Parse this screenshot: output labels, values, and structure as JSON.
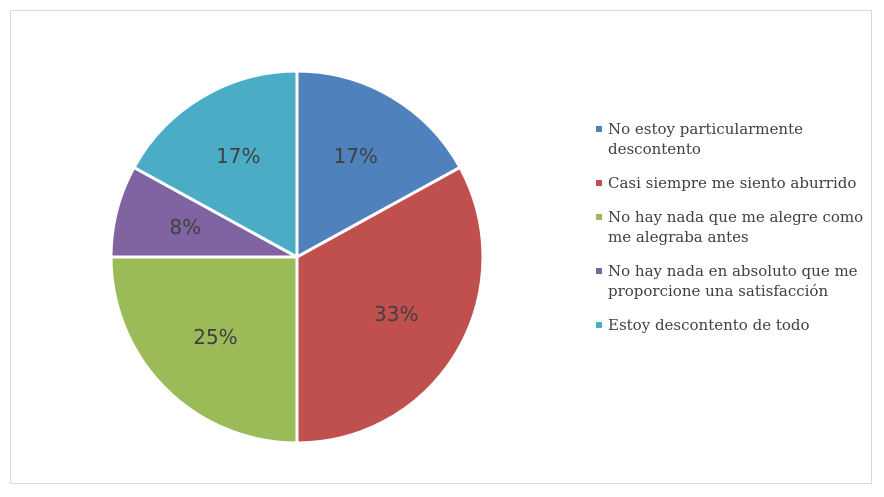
{
  "chart_data": {
    "type": "pie",
    "slices": [
      {
        "label": "No estoy particularmente descontento",
        "value": 17,
        "display": "17%",
        "color": "#4f81bd"
      },
      {
        "label": "Casi siempre me siento aburrido",
        "value": 33,
        "display": "33%",
        "color": "#c0504d"
      },
      {
        "label": "No hay nada que me alegre como me alegraba antes",
        "value": 25,
        "display": "25%",
        "color": "#9bbb59"
      },
      {
        "label": "No hay nada en absoluto que me proporcione una satisfacción",
        "value": 8,
        "display": "8%",
        "color": "#8064a2"
      },
      {
        "label": "Estoy descontento de todo",
        "value": 17,
        "display": "17%",
        "color": "#4bacc6"
      }
    ],
    "start_angle_deg": 0,
    "direction": "clockwise",
    "legend_position": "right"
  },
  "legend": {
    "items": [
      {
        "text": "No estoy particularmente descontento",
        "color": "#4f81bd"
      },
      {
        "text": "Casi siempre me siento aburrido",
        "color": "#c0504d"
      },
      {
        "text": "No hay nada que me alegre como me alegraba antes",
        "color": "#9bbb59"
      },
      {
        "text": "No hay nada en absoluto que me proporcione una satisfacción",
        "color": "#8064a2"
      },
      {
        "text": "Estoy descontento de todo",
        "color": "#4bacc6"
      }
    ]
  }
}
